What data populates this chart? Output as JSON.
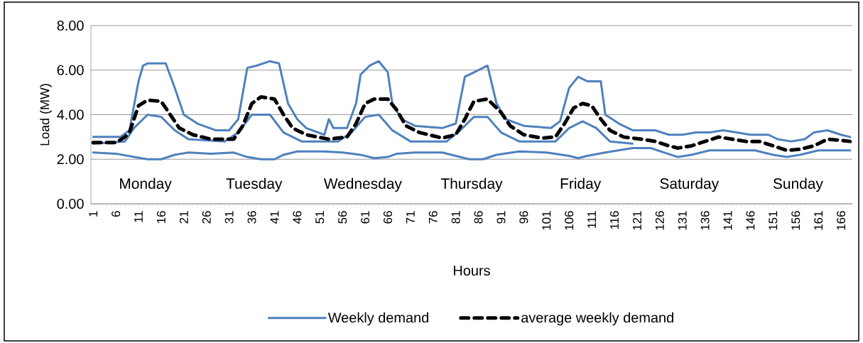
{
  "chart_data": {
    "type": "line",
    "xlabel": "Hours",
    "ylabel": "Load (MW)",
    "annotations": [
      "Monday",
      "Tuesday",
      "Wednesday",
      "Thursday",
      "Friday",
      "Saturday",
      "Sunday"
    ],
    "xlim": [
      0.5,
      168.5
    ],
    "xticks": [
      1,
      6,
      11,
      16,
      21,
      26,
      31,
      36,
      41,
      46,
      51,
      56,
      61,
      66,
      71,
      76,
      81,
      86,
      91,
      96,
      101,
      106,
      111,
      116,
      121,
      126,
      131,
      136,
      141,
      146,
      151,
      156,
      161,
      166
    ],
    "ylim": [
      0,
      8
    ],
    "yticks": [
      {
        "value": 0,
        "label": "0.00"
      },
      {
        "value": 2,
        "label": "2.00"
      },
      {
        "value": 4,
        "label": "4.00"
      },
      {
        "value": 6,
        "label": "6.00"
      },
      {
        "value": 8,
        "label": "8.00"
      }
    ],
    "grid": "y",
    "legend": "bottom",
    "marker": "none",
    "series": [
      {
        "name": "Weekly demand",
        "color": "#4f81bd",
        "line_style": "solid",
        "x": [
          1,
          7,
          9,
          11,
          12,
          13,
          17,
          19,
          21,
          24,
          28,
          31,
          33,
          35,
          37,
          40,
          42,
          44,
          46,
          48,
          52,
          53,
          54,
          57,
          59,
          60,
          62,
          64,
          66,
          67,
          69,
          72,
          78,
          81,
          83,
          85,
          88,
          90,
          92,
          96,
          102,
          104,
          106,
          108,
          110,
          113,
          114,
          117,
          120,
          125,
          128,
          131,
          134,
          137,
          140,
          143,
          146,
          150,
          152,
          155,
          158,
          160,
          163,
          166,
          168
        ],
        "values": [
          3.0,
          3.0,
          3.3,
          5.5,
          6.2,
          6.3,
          6.3,
          5.2,
          4.0,
          3.6,
          3.3,
          3.3,
          3.8,
          6.1,
          6.2,
          6.4,
          6.3,
          4.5,
          3.8,
          3.4,
          3.1,
          3.8,
          3.4,
          3.4,
          4.5,
          5.8,
          6.2,
          6.4,
          5.9,
          4.5,
          3.8,
          3.5,
          3.4,
          3.6,
          5.7,
          5.9,
          6.2,
          4.5,
          3.8,
          3.5,
          3.4,
          3.7,
          5.2,
          5.7,
          5.5,
          5.5,
          4.0,
          3.6,
          3.3,
          3.3,
          3.1,
          3.1,
          3.2,
          3.2,
          3.3,
          3.2,
          3.1,
          3.1,
          2.9,
          2.8,
          2.9,
          3.2,
          3.3,
          3.1,
          3.0
        ]
      },
      {
        "color": "#4f81bd",
        "line_style": "solid",
        "x": [
          1,
          6,
          10,
          13,
          16,
          19,
          22,
          27,
          32,
          35,
          38,
          41,
          43,
          46,
          52,
          56,
          60,
          63,
          66,
          68,
          72,
          78,
          81,
          84,
          87,
          90,
          95,
          101,
          106,
          108,
          110,
          114,
          120,
          124,
          127,
          130,
          133,
          137,
          142,
          147,
          151,
          154,
          157,
          161,
          165,
          168
        ],
        "values": [
          2.3,
          2.25,
          2.1,
          2.0,
          2.0,
          2.2,
          2.3,
          2.25,
          2.3,
          2.1,
          2.0,
          2.0,
          2.2,
          2.35,
          2.35,
          2.3,
          2.2,
          2.05,
          2.1,
          2.25,
          2.3,
          2.3,
          2.15,
          2.0,
          2.0,
          2.2,
          2.35,
          2.3,
          2.15,
          2.05,
          2.15,
          2.3,
          2.5,
          2.5,
          2.3,
          2.1,
          2.2,
          2.4,
          2.4,
          2.4,
          2.2,
          2.1,
          2.2,
          2.4,
          2.4,
          2.4
        ]
      },
      {
        "color": "#4f81bd",
        "line_style": "solid",
        "x": [
          1,
          8,
          10,
          13,
          16,
          19,
          22,
          30,
          33,
          36,
          40,
          43,
          47,
          55,
          58,
          61,
          64,
          67,
          71,
          79,
          82,
          85,
          88,
          91,
          95,
          103,
          106,
          109,
          112,
          115,
          120
        ],
        "values": [
          2.7,
          2.8,
          3.4,
          4.0,
          3.9,
          3.3,
          2.9,
          2.8,
          3.2,
          4.0,
          4.0,
          3.2,
          2.8,
          2.8,
          3.2,
          3.9,
          4.0,
          3.3,
          2.8,
          2.8,
          3.3,
          3.9,
          3.9,
          3.2,
          2.8,
          2.8,
          3.4,
          3.7,
          3.4,
          2.8,
          2.7
        ]
      },
      {
        "name": "average weekly demand",
        "color": "#000000",
        "line_style": "dashed",
        "x": [
          1,
          6,
          8,
          9,
          11,
          13,
          16,
          18,
          20,
          23,
          27,
          32,
          34,
          36,
          38,
          41,
          43,
          45,
          48,
          53,
          57,
          59,
          61,
          63,
          66,
          68,
          70,
          73,
          78,
          81,
          83,
          85,
          88,
          91,
          93,
          96,
          100,
          103,
          105,
          107,
          109,
          111,
          113,
          115,
          118,
          122,
          125,
          128,
          130,
          133,
          136,
          139,
          142,
          145,
          148,
          151,
          154,
          157,
          160,
          163,
          166,
          168
        ],
        "values": [
          2.75,
          2.75,
          3.0,
          3.2,
          4.4,
          4.65,
          4.6,
          4.0,
          3.4,
          3.1,
          2.9,
          2.9,
          3.5,
          4.5,
          4.8,
          4.7,
          4.0,
          3.4,
          3.1,
          2.9,
          3.0,
          3.6,
          4.5,
          4.7,
          4.7,
          4.2,
          3.5,
          3.2,
          2.95,
          3.1,
          3.8,
          4.6,
          4.7,
          4.1,
          3.5,
          3.1,
          2.95,
          3.0,
          3.6,
          4.3,
          4.5,
          4.4,
          3.8,
          3.3,
          3.0,
          2.9,
          2.8,
          2.6,
          2.5,
          2.6,
          2.8,
          3.0,
          2.9,
          2.8,
          2.8,
          2.6,
          2.4,
          2.45,
          2.6,
          2.9,
          2.85,
          2.8
        ]
      }
    ]
  }
}
